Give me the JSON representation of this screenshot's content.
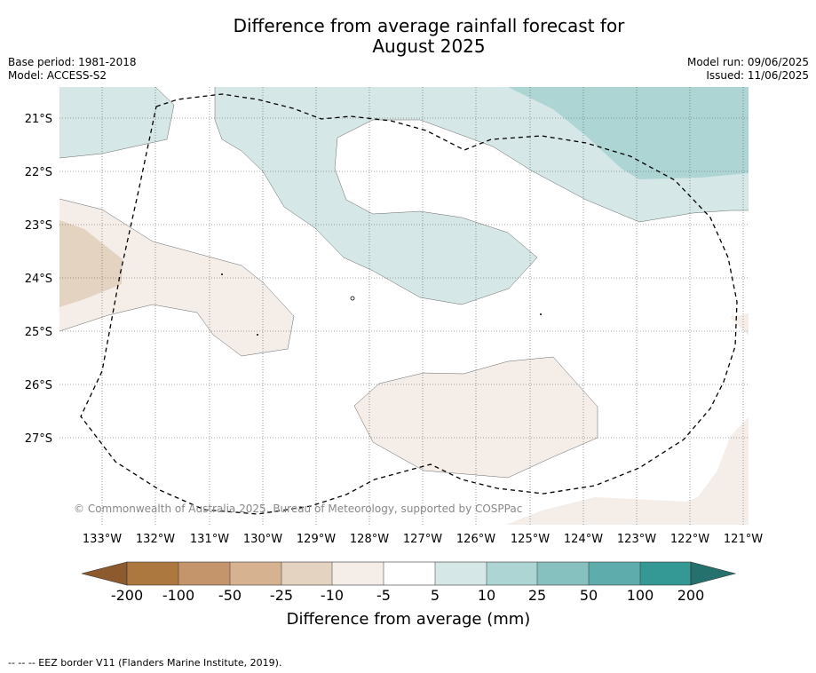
{
  "title_line1": "Difference from average rainfall forecast for",
  "title_line2": "August 2025",
  "base_period": "Base period: 1981-2018",
  "model": "Model: ACCESS-S2",
  "model_run": "Model run: 09/06/2025",
  "issued": "Issued: 11/06/2025",
  "copyright": "© Commonwealth of Australia 2025, Bureau of Meteorology, supported by COSPPac",
  "lat_labels": [
    "21°S",
    "22°S",
    "23°S",
    "24°S",
    "25°S",
    "26°S",
    "27°S"
  ],
  "lon_labels": [
    "133°W",
    "132°W",
    "131°W",
    "130°W",
    "129°W",
    "128°W",
    "127°W",
    "126°W",
    "125°W",
    "124°W",
    "123°W",
    "122°W",
    "121°W"
  ],
  "colorbar": {
    "label": "Difference from average (mm)",
    "ticks": [
      "-200",
      "-100",
      "-50",
      "-25",
      "-10",
      "-5",
      "5",
      "10",
      "25",
      "50",
      "100",
      "200"
    ],
    "colors": [
      "#8c5a2c",
      "#ad7840",
      "#c4956a",
      "#d6b291",
      "#e5d3c1",
      "#f4ede8",
      "#ffffff",
      "#d5e8e7",
      "#acd5d4",
      "#86c1c0",
      "#5eacab",
      "#349995",
      "#24716e"
    ]
  },
  "footnote": "-- -- -- EEZ border V11 (Flanders Marine Institute, 2019).",
  "colors": {
    "light_teal": "#d5e8e7",
    "medium_teal": "#acd5d4",
    "light_brown": "#f4ede8",
    "medium_brown": "#e5d3c1"
  }
}
